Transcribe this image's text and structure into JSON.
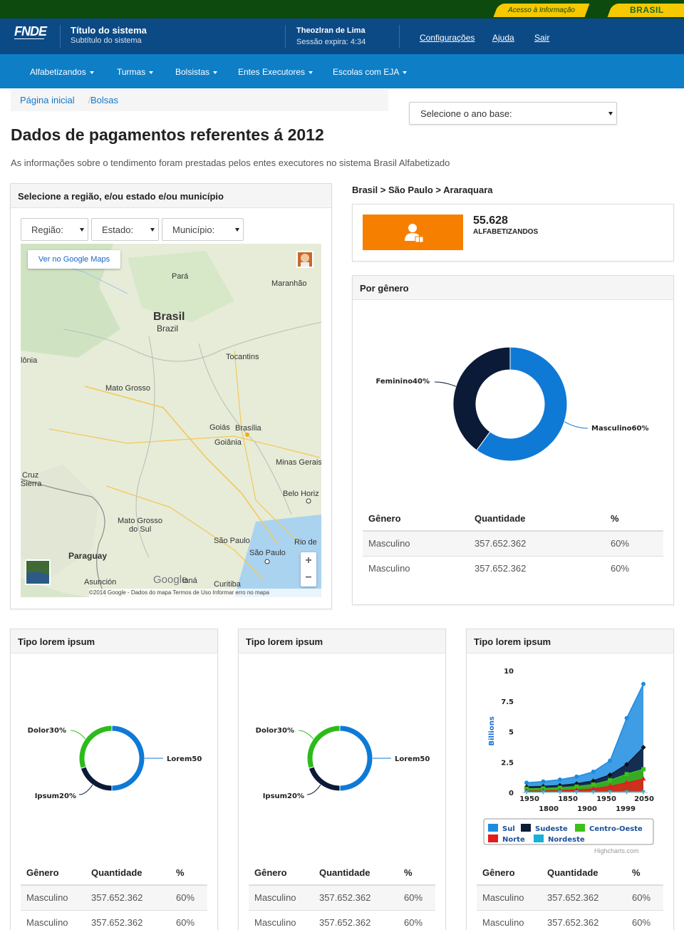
{
  "govbar": {
    "acesso_label": "Acesso à Informação",
    "brasil_label": "BRASIL"
  },
  "header": {
    "logo": "FNDE",
    "system_title": "Título do sistema",
    "system_subtitle": "Subtítulo do sistema",
    "user_name": "Theozlran de Lima",
    "session": "Sessão expira: 4:34",
    "links": [
      "Configurações",
      "Ajuda",
      "Sair"
    ]
  },
  "nav": {
    "items": [
      "Alfabetizandos",
      "Turmas",
      "Bolsistas",
      "Entes Executores",
      "Escolas com EJA"
    ]
  },
  "breadcrumb": {
    "home": "Página inicial",
    "current": "Bolsas",
    "sep": "/"
  },
  "year_select": {
    "placeholder": "Selecione o ano base:"
  },
  "page": {
    "title": "Dados de pagamentos referentes á 2012",
    "description": "As informações sobre o tendimento foram prestadas pelos entes executores no sistema Brasil Alfabetizado"
  },
  "region_panel": {
    "title": "Selecione a região, e/ou estado e/ou município",
    "selects": [
      "Região:",
      "Estado:",
      "Município:"
    ],
    "map": {
      "button": "Ver no Google Maps",
      "labels": [
        "Pará",
        "Maranhão",
        "Brasil",
        "Brazil",
        "Tocantins",
        "lônia",
        "Mato Grosso",
        "Goiás",
        "Brasília",
        "Goiânia",
        "Minas Gerais",
        "Cruz",
        "Sierra",
        "Belo Horiz",
        "Mato Grosso",
        "do Sul",
        "Paraguay",
        "São Paulo",
        "Rio de",
        "São Paulo",
        "Asunción",
        "Curitiba",
        "Google",
        "ianá"
      ],
      "zoom_in": "+",
      "zoom_out": "−",
      "footer": "©2014 Google - Dados do mapa   Termos de Uso   Informar erro no mapa"
    }
  },
  "location": {
    "path": "Brasil > São Paulo > Araraquara"
  },
  "stat": {
    "value": "55.628",
    "label": "ALFABETIZANDOS"
  },
  "gender_panel": {
    "title": "Por gênero",
    "chart_data": {
      "type": "pie",
      "labels": [
        "Masculino",
        "Feminino"
      ],
      "values": [
        60,
        40
      ],
      "display_labels": [
        "Masculino60%",
        "Feminino40%"
      ],
      "colors": [
        "#0e7ad6",
        "#0b1a36"
      ],
      "donut": true
    },
    "table": {
      "headers": [
        "Gênero",
        "Quantidade",
        "%"
      ],
      "rows": [
        [
          "Masculino",
          "357.652.362",
          "60%"
        ],
        [
          "Masculino",
          "357.652.362",
          "60%"
        ]
      ]
    }
  },
  "tipo_panels": [
    {
      "title": "Tipo lorem ipsum",
      "chart_data": {
        "type": "pie",
        "labels": [
          "Lorem",
          "Ipsum",
          "Dolor"
        ],
        "values": [
          50,
          20,
          30
        ],
        "display_labels": [
          "Lorem50",
          "Ipsum20%",
          "Dolor30%"
        ],
        "colors": [
          "#0e7ad6",
          "#0b1a36",
          "#2cbb1a"
        ],
        "donut": true
      },
      "table": {
        "headers": [
          "Gênero",
          "Quantidade",
          "%"
        ],
        "rows": [
          [
            "Masculino",
            "357.652.362",
            "60%"
          ],
          [
            "Masculino",
            "357.652.362",
            "60%"
          ]
        ]
      }
    },
    {
      "title": "Tipo lorem ipsum",
      "chart_data": {
        "type": "pie",
        "labels": [
          "Lorem",
          "Ipsum",
          "Dolor"
        ],
        "values": [
          50,
          20,
          30
        ],
        "display_labels": [
          "Lorem50",
          "Ipsum20%",
          "Dolor30%"
        ],
        "colors": [
          "#0e7ad6",
          "#0b1a36",
          "#2cbb1a"
        ],
        "donut": true
      },
      "table": {
        "headers": [
          "Gênero",
          "Quantidade",
          "%"
        ],
        "rows": [
          [
            "Masculino",
            "357.652.362",
            "60%"
          ],
          [
            "Masculino",
            "357.652.362",
            "60%"
          ]
        ]
      }
    },
    {
      "title": "Tipo lorem ipsum",
      "chart_data": {
        "type": "area",
        "ylabel": "Billions",
        "ylim": [
          0,
          10
        ],
        "yticks": [
          "0",
          "2.5",
          "5",
          "7.5",
          "10"
        ],
        "xticks_row1": [
          "1950",
          "1850",
          "1950",
          "2050"
        ],
        "xticks_row2": [
          "1800",
          "1900",
          "1999"
        ],
        "series": [
          {
            "name": "Sul",
            "color": "#1c8ce0",
            "values": [
              0.8,
              0.9,
              1.05,
              1.3,
              1.7,
              2.6,
              6.1,
              8.9
            ]
          },
          {
            "name": "Sudeste",
            "color": "#0d1b38",
            "values": [
              0.45,
              0.5,
              0.58,
              0.72,
              0.95,
              1.45,
              2.3,
              3.7
            ]
          },
          {
            "name": "Centro-Oeste",
            "color": "#3cc01c",
            "values": [
              0.3,
              0.33,
              0.38,
              0.48,
              0.65,
              1.0,
              1.5,
              1.9
            ]
          },
          {
            "name": "Norte",
            "color": "#e51c1c",
            "values": [
              0.1,
              0.12,
              0.15,
              0.2,
              0.3,
              0.5,
              0.8,
              1.1
            ]
          },
          {
            "name": "Nordeste",
            "color": "#18b0d8",
            "values": [
              0.02,
              0.02,
              0.03,
              0.03,
              0.04,
              0.04,
              0.05,
              0.06
            ]
          }
        ],
        "credit": "Highcharts.com"
      },
      "table": {
        "headers": [
          "Gênero",
          "Quantidade",
          "%"
        ],
        "rows": [
          [
            "Masculino",
            "357.652.362",
            "60%"
          ],
          [
            "Masculino",
            "357.652.362",
            "60%"
          ]
        ]
      }
    }
  ]
}
